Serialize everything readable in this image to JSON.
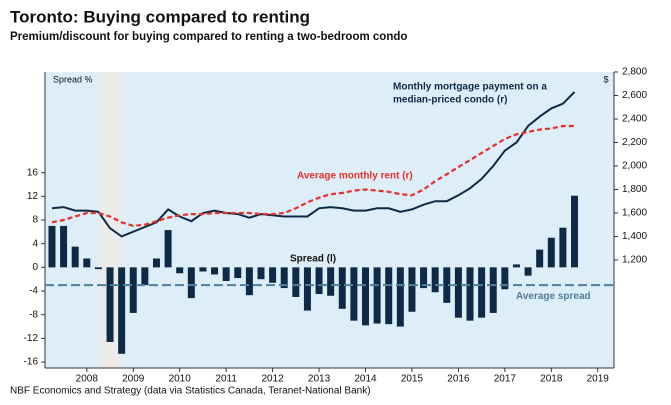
{
  "chart_data": {
    "type": "bar_line",
    "title": "Toronto: Buying compared to renting",
    "subtitle": "Premium/discount for buying compared to renting a two-bedroom condo",
    "source": "NBF Economics and Strategy (data via Statistics Canada, Teranet-National Bank)",
    "ylabel": "Spread %",
    "y2label": "$",
    "x": [
      2007.75,
      2008,
      2008.25,
      2008.5,
      2008.75,
      2009,
      2009.25,
      2009.5,
      2009.75,
      2010,
      2010.25,
      2010.5,
      2010.75,
      2011,
      2011.25,
      2011.5,
      2011.75,
      2012,
      2012.25,
      2012.5,
      2012.75,
      2013,
      2013.25,
      2013.5,
      2013.75,
      2014,
      2014.25,
      2014.5,
      2014.75,
      2015,
      2015.25,
      2015.5,
      2015.75,
      2016,
      2016.25,
      2016.5,
      2016.75,
      2017,
      2017.25,
      2017.5,
      2017.75,
      2018,
      2018.25,
      2018.5,
      2018.75,
      2019
    ],
    "xlim": [
      2007.6,
      2019.85
    ],
    "xticks": [
      {
        "value": 2008.5,
        "label": "2008"
      },
      {
        "value": 2009.5,
        "label": "2009"
      },
      {
        "value": 2010.5,
        "label": "2010"
      },
      {
        "value": 2011.5,
        "label": "2011"
      },
      {
        "value": 2012.5,
        "label": "2012"
      },
      {
        "value": 2013.5,
        "label": "2013"
      },
      {
        "value": 2014.5,
        "label": "2014"
      },
      {
        "value": 2015.5,
        "label": "2015"
      },
      {
        "value": 2016.5,
        "label": "2016"
      },
      {
        "value": 2017.5,
        "label": "2017"
      },
      {
        "value": 2018.5,
        "label": "2018"
      },
      {
        "value": 2019.5,
        "label": "2019"
      }
    ],
    "ylim": [
      -17,
      33
    ],
    "yticks": [
      -16,
      -12,
      -8,
      -4,
      0,
      4,
      8,
      12,
      16
    ],
    "y2lim": [
      280,
      2800
    ],
    "y2ticks": [
      {
        "value": 1200,
        "label": "1,200"
      },
      {
        "value": 1400,
        "label": "1,400"
      },
      {
        "value": 1600,
        "label": "1,600"
      },
      {
        "value": 1800,
        "label": "1,800"
      },
      {
        "value": 2000,
        "label": "2,000"
      },
      {
        "value": 2200,
        "label": "2,200"
      },
      {
        "value": 2400,
        "label": "2,400"
      },
      {
        "value": 2600,
        "label": "2,600"
      },
      {
        "value": 2800,
        "label": "2,800"
      }
    ],
    "shaded_region": [
      2008.75,
      2009.25
    ],
    "series": [
      {
        "name": "Spread (l)",
        "type": "bar",
        "color": "#0f2a47",
        "values": [
          7,
          7,
          3.5,
          1.5,
          -0.3,
          -12.6,
          -14.6,
          -7.7,
          -3,
          1.5,
          6.3,
          -1,
          -5.2,
          -0.7,
          -1.2,
          -2.3,
          -1.8,
          -4.7,
          -2,
          -2.6,
          -3.5,
          -5,
          -7.3,
          -4.5,
          -4.8,
          -7,
          -9,
          -9.8,
          -9.5,
          -9.6,
          -10,
          -7.5,
          -3.5,
          -4.2,
          -6,
          -8.5,
          -9,
          -8.5,
          -7.7,
          -3.7,
          0.5,
          -1.4,
          3,
          5,
          6.7,
          12.1
        ]
      },
      {
        "name": [
          "Monthly mortgage payment on a",
          "median-priced condo (r)"
        ],
        "type": "line",
        "axis": "y2",
        "color": "#0f2a47",
        "values": [
          1640,
          1650,
          1620,
          1620,
          1610,
          1470,
          1400,
          1440,
          1480,
          1520,
          1630,
          1570,
          1530,
          1600,
          1620,
          1600,
          1590,
          1560,
          1590,
          1580,
          1570,
          1570,
          1570,
          1640,
          1650,
          1640,
          1620,
          1620,
          1640,
          1640,
          1610,
          1630,
          1670,
          1700,
          1700,
          1750,
          1810,
          1890,
          2000,
          2130,
          2200,
          2340,
          2420,
          2490,
          2530,
          2630
        ]
      },
      {
        "name": "Average monthly rent (r)",
        "type": "line",
        "axis": "y2",
        "color": "#e8302a",
        "dashed": true,
        "values": [
          1520,
          1540,
          1570,
          1600,
          1600,
          1570,
          1520,
          1490,
          1500,
          1530,
          1560,
          1580,
          1590,
          1590,
          1600,
          1600,
          1600,
          1600,
          1590,
          1590,
          1600,
          1640,
          1690,
          1730,
          1760,
          1770,
          1790,
          1800,
          1790,
          1780,
          1760,
          1750,
          1800,
          1870,
          1930,
          1990,
          2050,
          2110,
          2170,
          2230,
          2270,
          2290,
          2310,
          2320,
          2340,
          2340
        ]
      }
    ],
    "reference_line": {
      "name": "Average spread",
      "value": -3,
      "color": "#4f7f9e"
    }
  }
}
